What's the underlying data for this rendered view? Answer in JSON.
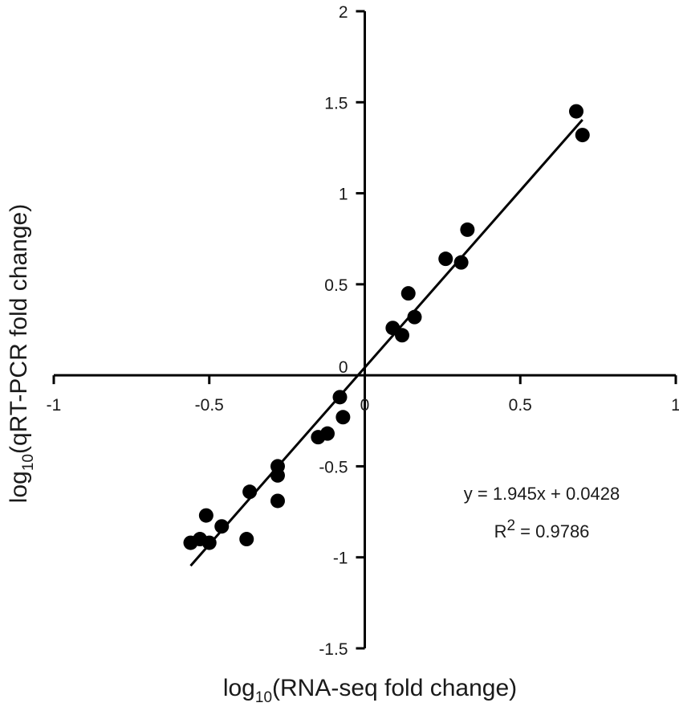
{
  "chart_data": {
    "type": "scatter",
    "xlabel": {
      "prefix": "log",
      "subscript": "10",
      "rest": "(RNA-seq fold change)"
    },
    "ylabel": {
      "prefix": "log",
      "subscript": "10",
      "rest": "(qRT-PCR fold change)"
    },
    "xlim": [
      -1,
      1
    ],
    "ylim": [
      -1.5,
      2
    ],
    "x_ticks": [
      -1,
      -0.5,
      0,
      0.5,
      1
    ],
    "x_tick_labels": [
      "-1",
      "-0.5",
      "0",
      "0.5",
      "1"
    ],
    "y_ticks": [
      -1.5,
      -1,
      -0.5,
      0.5,
      1,
      1.5,
      2
    ],
    "y_tick_labels": [
      "-1.5",
      "-1",
      "-0.5",
      "0.5",
      "1",
      "1.5",
      "2"
    ],
    "grid": false,
    "legend": "none",
    "marker_color": "#000000",
    "points": [
      {
        "x": -0.56,
        "y": -0.92
      },
      {
        "x": -0.53,
        "y": -0.9
      },
      {
        "x": -0.51,
        "y": -0.77
      },
      {
        "x": -0.5,
        "y": -0.92
      },
      {
        "x": -0.46,
        "y": -0.83
      },
      {
        "x": -0.38,
        "y": -0.9
      },
      {
        "x": -0.37,
        "y": -0.64
      },
      {
        "x": -0.28,
        "y": -0.5
      },
      {
        "x": -0.28,
        "y": -0.55
      },
      {
        "x": -0.28,
        "y": -0.69
      },
      {
        "x": -0.15,
        "y": -0.34
      },
      {
        "x": -0.12,
        "y": -0.32
      },
      {
        "x": -0.08,
        "y": -0.12
      },
      {
        "x": -0.07,
        "y": -0.23
      },
      {
        "x": 0.09,
        "y": 0.26
      },
      {
        "x": 0.12,
        "y": 0.22
      },
      {
        "x": 0.14,
        "y": 0.45
      },
      {
        "x": 0.16,
        "y": 0.32
      },
      {
        "x": 0.26,
        "y": 0.64
      },
      {
        "x": 0.31,
        "y": 0.62
      },
      {
        "x": 0.33,
        "y": 0.8
      },
      {
        "x": 0.68,
        "y": 1.45
      },
      {
        "x": 0.7,
        "y": 1.32
      }
    ],
    "trendline": {
      "slope": 1.945,
      "intercept": 0.0428,
      "x_range": [
        -0.56,
        0.7
      ]
    },
    "annotations": {
      "equation": "y = 1.945x + 0.0428",
      "r2_prefix": "R",
      "r2_sup": "2",
      "r2_rest": " = 0.9786"
    }
  }
}
